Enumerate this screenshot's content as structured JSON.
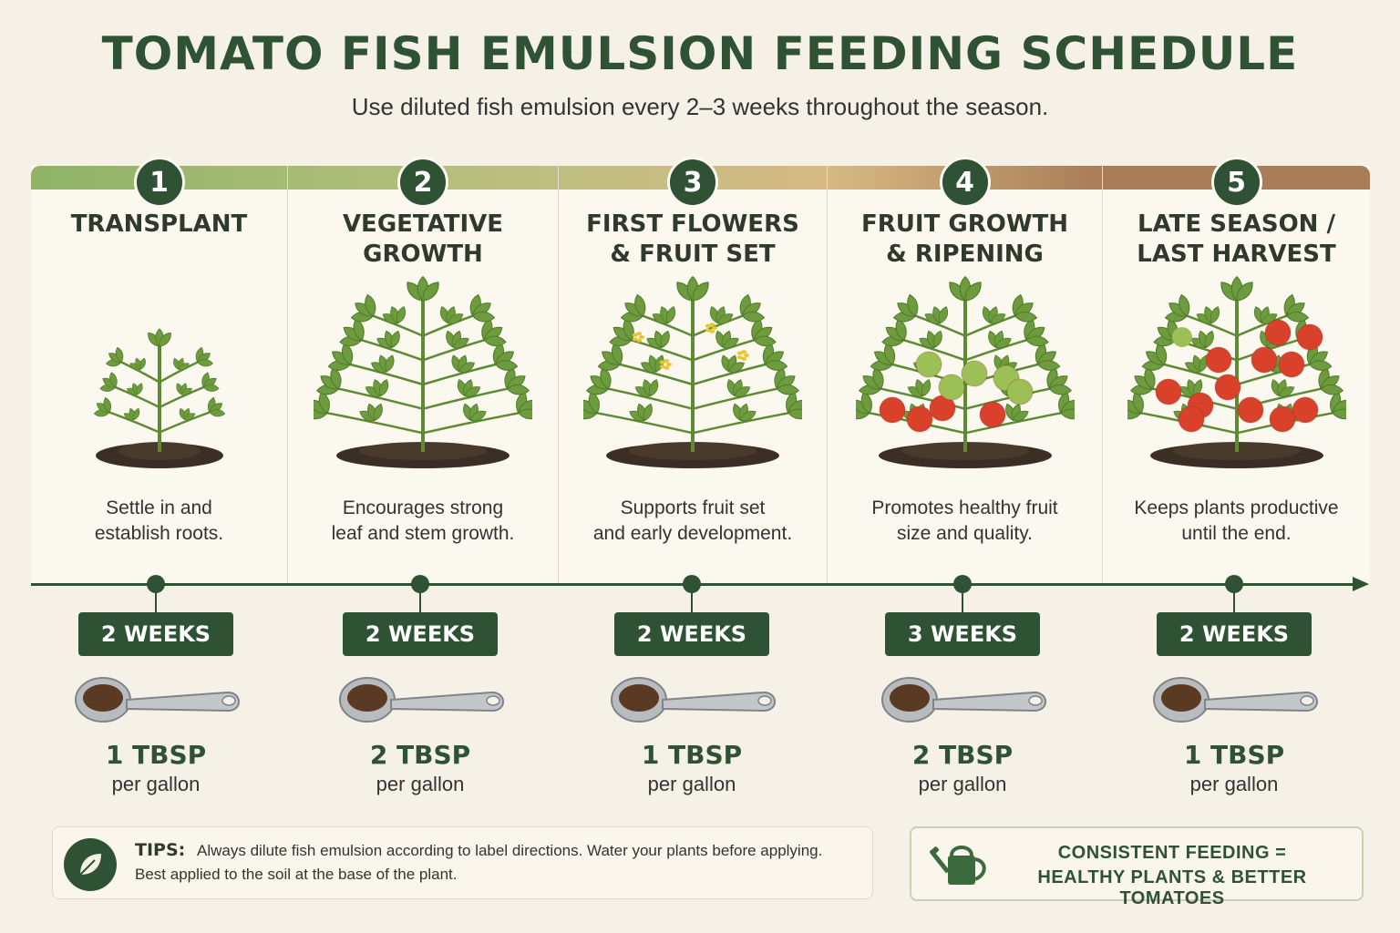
{
  "title": "TOMATO FISH EMULSION FEEDING SCHEDULE",
  "subtitle": "Use diluted fish emulsion every 2–3 weeks throughout the season.",
  "colors": {
    "dark_green": "#2e5233",
    "band": [
      "#8fb366",
      "#a6bb74",
      "#bfbf82",
      "#d7b983",
      "#a87d58"
    ],
    "tomato_red": "#d9412b",
    "tomato_green": "#9cc055"
  },
  "stages": [
    {
      "number": "1",
      "title": "TRANSPLANT",
      "description": "Settle in and\nestablish roots.",
      "weeks": "2 WEEKS",
      "amount": "1 TBSP",
      "unit": "per gallon",
      "icon": "seedling-icon"
    },
    {
      "number": "2",
      "title": "VEGETATIVE\nGROWTH",
      "description": "Encourages strong\nleaf and stem growth.",
      "weeks": "2 WEEKS",
      "amount": "2 TBSP",
      "unit": "per gallon",
      "icon": "leafy-plant-icon"
    },
    {
      "number": "3",
      "title": "FIRST FLOWERS\n& FRUIT SET",
      "description": "Supports fruit set\nand early development.",
      "weeks": "2 WEEKS",
      "amount": "1 TBSP",
      "unit": "per gallon",
      "icon": "flowering-plant-icon"
    },
    {
      "number": "4",
      "title": "FRUIT GROWTH\n& RIPENING",
      "description": "Promotes healthy fruit\nsize and quality.",
      "weeks": "3 WEEKS",
      "amount": "2 TBSP",
      "unit": "per gallon",
      "icon": "fruiting-plant-icon"
    },
    {
      "number": "5",
      "title": "LATE SEASON /\nLAST HARVEST",
      "description": "Keeps plants productive\nuntil the end.",
      "weeks": "2 WEEKS",
      "amount": "1 TBSP",
      "unit": "per gallon",
      "icon": "ripe-tomato-plant-icon"
    }
  ],
  "tips": {
    "label": "TIPS:",
    "line1": "Always dilute fish emulsion according to label directions. Water your plants before applying.",
    "line2": "Best applied to the soil at the base of the plant."
  },
  "badge": {
    "line1": "CONSISTENT FEEDING =",
    "line2": "HEALTHY PLANTS & BETTER TOMATOES"
  }
}
